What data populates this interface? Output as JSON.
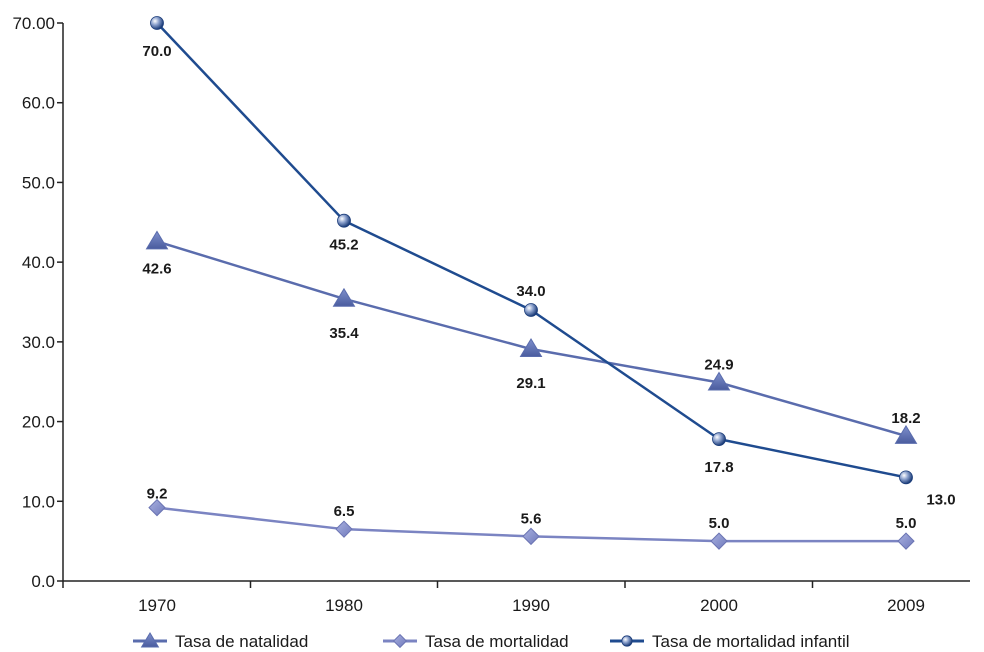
{
  "chart_data": {
    "type": "line",
    "title": "",
    "xlabel": "",
    "ylabel": "",
    "categories": [
      "1970",
      "1980",
      "1990",
      "2000",
      "2009"
    ],
    "ylim": [
      0,
      70
    ],
    "yticks": [
      "0.0",
      "10.0",
      "20.0",
      "30.0",
      "40.0",
      "50.0",
      "60.0",
      "70.00"
    ],
    "ytick_values": [
      0,
      10,
      20,
      30,
      40,
      50,
      60,
      70
    ],
    "grid": false,
    "legend_position": "bottom",
    "series": [
      {
        "name": "Tasa de natalidad",
        "values": [
          42.6,
          35.4,
          29.1,
          24.9,
          18.2
        ],
        "labels": [
          "42.6",
          "35.4",
          "29.1",
          "24.9",
          "18.2"
        ],
        "marker": "triangle",
        "color": "#5a6cad"
      },
      {
        "name": "Tasa de mortalidad",
        "values": [
          9.2,
          6.5,
          5.6,
          5.0,
          5.0
        ],
        "labels": [
          "9.2",
          "6.5",
          "5.6",
          "5.0",
          "5.0"
        ],
        "marker": "diamond",
        "color": "#7b84c2"
      },
      {
        "name": "Tasa de mortalidad infantil",
        "values": [
          70.0,
          45.2,
          34.0,
          17.8,
          13.0
        ],
        "labels": [
          "70.0",
          "45.2",
          "34.0",
          "17.8",
          "13.0"
        ],
        "marker": "circle",
        "color": "#1f4b8f"
      }
    ]
  }
}
